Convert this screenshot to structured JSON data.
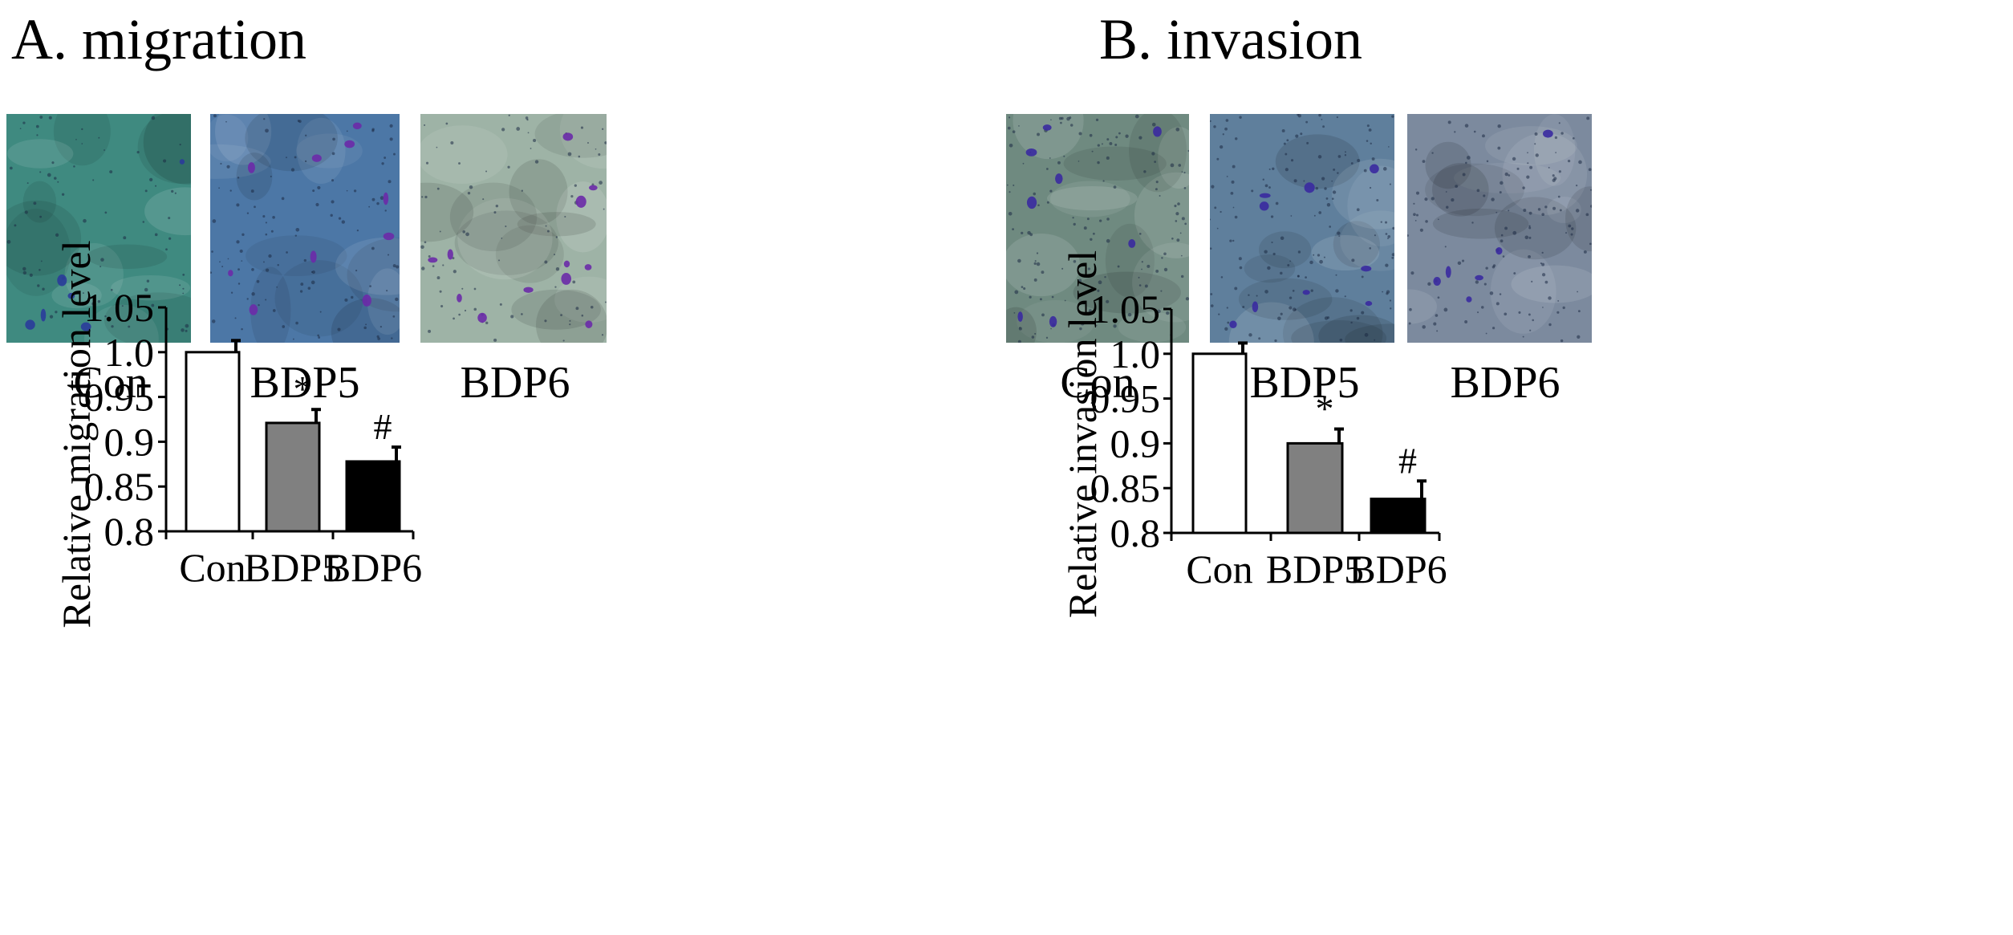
{
  "panels": [
    {
      "title": "A. migration",
      "micrographs": [
        {
          "label": "Con",
          "background": "#3f8a80",
          "cell_color": "#2a3b9a",
          "cell_density": 0.3,
          "large_cells": 6
        },
        {
          "label": "BDP5",
          "background": "#4c77a6",
          "cell_color": "#6b2aa8",
          "cell_density": 0.45,
          "large_cells": 10
        },
        {
          "label": "BDP6",
          "background": "#9eb3a6",
          "cell_color": "#6a2aa8",
          "cell_density": 0.35,
          "large_cells": 12
        }
      ],
      "chart_data": {
        "type": "bar",
        "title": "",
        "xlabel": "",
        "ylabel": "Relative migration level",
        "ylim": [
          0.8,
          1.05
        ],
        "yticks": [
          "0.8",
          "0.85",
          "0.9",
          "0.95",
          "1.0",
          "1.05"
        ],
        "categories": [
          "Con",
          "BDP5",
          "BDP6"
        ],
        "values": [
          1.0,
          0.921,
          0.878
        ],
        "errors": [
          0.013,
          0.015,
          0.016
        ],
        "colors": [
          "#ffffff",
          "#808080",
          "#000000"
        ],
        "annotations": [
          "",
          "*",
          "#"
        ],
        "grid": false
      }
    },
    {
      "title": "B. invasion",
      "micrographs": [
        {
          "label": "Con",
          "background": "#6f8a80",
          "cell_color": "#3a2aa0",
          "cell_density": 0.55,
          "large_cells": 8
        },
        {
          "label": "BDP5",
          "background": "#5f7f9c",
          "cell_color": "#3a2aa0",
          "cell_density": 0.6,
          "large_cells": 9
        },
        {
          "label": "BDP6",
          "background": "#7c8a9e",
          "cell_color": "#3a2aa0",
          "cell_density": 0.55,
          "large_cells": 6
        }
      ],
      "chart_data": {
        "type": "bar",
        "title": "",
        "xlabel": "",
        "ylabel": "Relative invasion level",
        "ylim": [
          0.8,
          1.05
        ],
        "yticks": [
          "0.8",
          "0.85",
          "0.9",
          "0.95",
          "1.0",
          "1.05"
        ],
        "categories": [
          "Con",
          "BDP5",
          "BDP6"
        ],
        "values": [
          1.0,
          0.9,
          0.838
        ],
        "errors": [
          0.012,
          0.016,
          0.02
        ],
        "colors": [
          "#ffffff",
          "#808080",
          "#000000"
        ],
        "annotations": [
          "",
          "*",
          "#"
        ],
        "grid": false
      }
    }
  ]
}
